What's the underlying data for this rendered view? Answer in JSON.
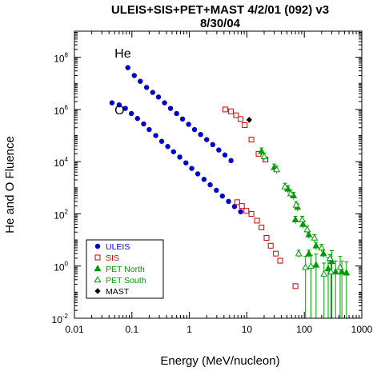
{
  "chart_data": {
    "type": "scatter",
    "title_line1": "ULEIS+SIS+PET+MAST 4/2/01 (092) v3",
    "title_line2": "8/30/04",
    "xlabel": "Energy (MeV/nucleon)",
    "ylabel": "He and O Fluence",
    "x_scale": "log",
    "y_scale": "log",
    "xlim": [
      0.01,
      1000
    ],
    "ylim": [
      0.01,
      1000000000
    ],
    "x_ticks": [
      {
        "value": 0.01,
        "label": "0.01"
      },
      {
        "value": 0.1,
        "label": "0.1"
      },
      {
        "value": 1,
        "label": "1"
      },
      {
        "value": 10,
        "label": "10"
      },
      {
        "value": 100,
        "label": "100"
      },
      {
        "value": 1000,
        "label": "1000"
      }
    ],
    "y_ticks": [
      {
        "value": 0.01,
        "base": "10",
        "exp": "-2"
      },
      {
        "value": 1,
        "base": "10",
        "exp": "0"
      },
      {
        "value": 100,
        "base": "10",
        "exp": "2"
      },
      {
        "value": 10000,
        "base": "10",
        "exp": "4"
      },
      {
        "value": 1000000,
        "base": "10",
        "exp": "6"
      },
      {
        "value": 100000000,
        "base": "10",
        "exp": "8"
      }
    ],
    "annotations": [
      {
        "text": "He",
        "x": 0.05,
        "y": 150000000
      },
      {
        "text": "O",
        "x": 0.05,
        "y": 1000000
      }
    ],
    "legend_position": "bottom-left",
    "series": [
      {
        "name": "ULEIS",
        "color": "#0000cc",
        "marker": "circle-filled",
        "points": [
          [
            0.085,
            40000000
          ],
          [
            0.11,
            20000000
          ],
          [
            0.14,
            12000000
          ],
          [
            0.18,
            7000000
          ],
          [
            0.23,
            4500000
          ],
          [
            0.29,
            3000000
          ],
          [
            0.37,
            1800000
          ],
          [
            0.47,
            1100000
          ],
          [
            0.6,
            700000
          ],
          [
            0.76,
            430000
          ],
          [
            0.97,
            270000
          ],
          [
            1.23,
            170000
          ],
          [
            1.57,
            110000
          ],
          [
            2.0,
            70000
          ],
          [
            2.55,
            45000
          ],
          [
            3.25,
            28000
          ],
          [
            4.15,
            18000
          ],
          [
            5.3,
            11000
          ],
          [
            0.045,
            1800000
          ],
          [
            0.06,
            1500000
          ],
          [
            0.077,
            1100000
          ],
          [
            0.098,
            700000
          ],
          [
            0.125,
            450000
          ],
          [
            0.16,
            280000
          ],
          [
            0.2,
            170000
          ],
          [
            0.26,
            100000
          ],
          [
            0.33,
            60000
          ],
          [
            0.42,
            38000
          ],
          [
            0.53,
            24000
          ],
          [
            0.68,
            15000
          ],
          [
            0.87,
            9000
          ],
          [
            1.1,
            5500
          ],
          [
            1.4,
            3400
          ],
          [
            1.8,
            2100
          ],
          [
            2.3,
            1300
          ],
          [
            2.95,
            800
          ],
          [
            3.75,
            480
          ],
          [
            4.8,
            300
          ],
          [
            6.1,
            190
          ],
          [
            7.8,
            120
          ]
        ]
      },
      {
        "name": "SIS",
        "color": "#cc0000",
        "marker": "square-open",
        "points": [
          [
            4.2,
            1000000
          ],
          [
            5.3,
            850000
          ],
          [
            6.5,
            600000
          ],
          [
            7.8,
            430000
          ],
          [
            9.2,
            250000
          ],
          [
            12.0,
            70000
          ],
          [
            16.0,
            20000
          ],
          [
            21.0,
            12000
          ],
          [
            6.8,
            280
          ],
          [
            8.2,
            200
          ],
          [
            9.8,
            130
          ],
          [
            12.0,
            100
          ],
          [
            15.0,
            55
          ],
          [
            18.0,
            30
          ],
          [
            22.0,
            12
          ],
          [
            26.0,
            6
          ],
          [
            32.0,
            3
          ],
          [
            38.0,
            1.6
          ],
          [
            70.0,
            0.17
          ]
        ]
      },
      {
        "name": "PET North",
        "color": "#009900",
        "marker": "triangle-filled",
        "points": [
          [
            18.0,
            25000
          ],
          [
            30.0,
            6000
          ],
          [
            52.0,
            900
          ],
          [
            65.0,
            500
          ],
          [
            76.0,
            180
          ],
          [
            95.0,
            40
          ],
          [
            120.0,
            16
          ],
          [
            160.0,
            6
          ],
          [
            215.0,
            3
          ],
          [
            300.0,
            1.5
          ],
          [
            450.0,
            0.6
          ],
          [
            70.0,
            60
          ],
          [
            120.0,
            3
          ],
          [
            160.0,
            1.1
          ],
          [
            260.0,
            0.8
          ],
          [
            350.0,
            0.6
          ],
          [
            540.0,
            0.55
          ]
        ]
      },
      {
        "name": "PET South",
        "color": "#009900",
        "marker": "triangle-open",
        "points": [
          [
            20.0,
            16000
          ],
          [
            33.0,
            5000
          ],
          [
            46.0,
            1100
          ],
          [
            58.0,
            600
          ],
          [
            72.0,
            220
          ],
          [
            92.0,
            60
          ],
          [
            112.0,
            25
          ],
          [
            150.0,
            12
          ],
          [
            200.0,
            5
          ],
          [
            280.0,
            2
          ],
          [
            420.0,
            0.9
          ],
          [
            80.0,
            3
          ],
          [
            105.0,
            0.9
          ],
          [
            130.0,
            1.0
          ],
          [
            220.0,
            0.5
          ],
          [
            290.0,
            0.6
          ]
        ]
      },
      {
        "name": "MAST",
        "color": "#000000",
        "marker": "diamond-filled",
        "points": [
          [
            11.0,
            400000
          ]
        ]
      }
    ]
  }
}
